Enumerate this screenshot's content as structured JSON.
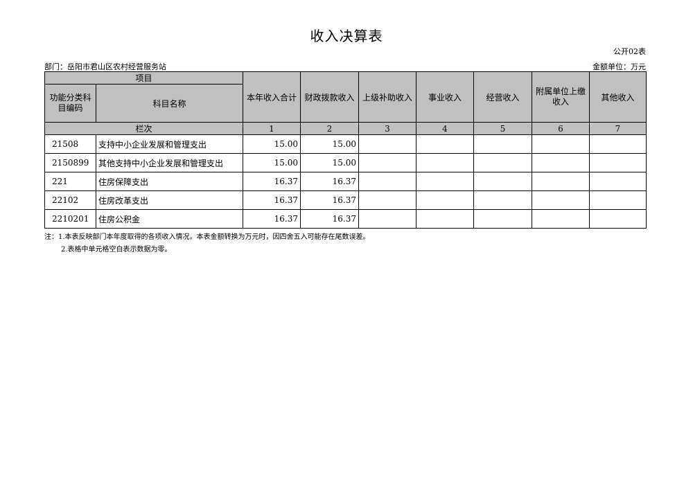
{
  "title": "收入决算表",
  "form_no": "公开02表",
  "department": "部门：岳阳市君山区农村经营服务站",
  "unit": "金额单位：万元",
  "header": {
    "project": "项目",
    "code": "功能分类科目编码",
    "name": "科目名称",
    "column_index": "栏次",
    "columns": [
      "本年收入合计",
      "财政拨款收入",
      "上级补助收入",
      "事业收入",
      "经营收入",
      "附属单位上缴收入",
      "其他收入"
    ],
    "column_numbers": [
      "1",
      "2",
      "3",
      "4",
      "5",
      "6",
      "7"
    ]
  },
  "rows": [
    {
      "code": "21508",
      "name": "支持中小企业发展和管理支出",
      "values": [
        "15.00",
        "15.00",
        "",
        "",
        "",
        "",
        ""
      ]
    },
    {
      "code": "2150899",
      "name": "其他支持中小企业发展和管理支出",
      "values": [
        "15.00",
        "15.00",
        "",
        "",
        "",
        "",
        ""
      ]
    },
    {
      "code": "221",
      "name": "住房保障支出",
      "values": [
        "16.37",
        "16.37",
        "",
        "",
        "",
        "",
        ""
      ]
    },
    {
      "code": "22102",
      "name": "住房改革支出",
      "values": [
        "16.37",
        "16.37",
        "",
        "",
        "",
        "",
        ""
      ]
    },
    {
      "code": "2210201",
      "name": "住房公积金",
      "values": [
        "16.37",
        "16.37",
        "",
        "",
        "",
        "",
        ""
      ]
    }
  ],
  "notes": [
    "注：1.本表反映部门本年度取得的各项收入情况。本表金额转换为万元时，因四舍五入可能存在尾数误差。",
    "2.表格中单元格空白表示数据为零。"
  ]
}
